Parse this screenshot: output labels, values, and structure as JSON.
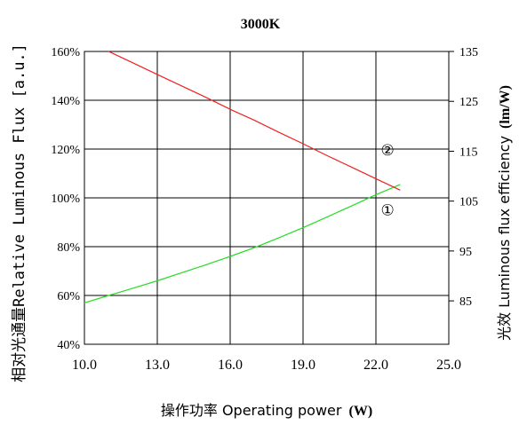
{
  "chart_data": {
    "type": "line",
    "title": "3000K",
    "xlabel": {
      "prefix": "操作功率 Operating power",
      "unit": "(W)"
    },
    "ylabel_left": "相对光通量Relative Luminous Flux [a.u.]",
    "ylabel_right": {
      "prefix": "光效 Luminous flux efficiency",
      "unit": "(lm/W)"
    },
    "x_ticks": [
      "10.0",
      "13.0",
      "16.0",
      "19.0",
      "22.0",
      "25.0"
    ],
    "xlim": [
      10.0,
      25.0
    ],
    "y_left_ticks": [
      "40%",
      "60%",
      "80%",
      "100%",
      "120%",
      "140%",
      "160%"
    ],
    "ylim_left": [
      40,
      160
    ],
    "y_right_ticks": [
      "85",
      "95",
      "105",
      "115",
      "125",
      "135"
    ],
    "ylim_right": [
      76.3,
      135
    ],
    "grid": true,
    "series": [
      {
        "name": "①",
        "axis": "left",
        "color": "#22dd22",
        "x": [
          10.0,
          11.0,
          12.0,
          13.0,
          14.0,
          15.0,
          16.0,
          17.0,
          18.0,
          19.0,
          20.0,
          21.0,
          22.0,
          23.0
        ],
        "values": [
          57,
          60,
          63,
          66,
          69.3,
          72.6,
          76,
          79.6,
          83.6,
          87.8,
          92.2,
          96.7,
          101.3,
          105.5
        ]
      },
      {
        "name": "②",
        "axis": "right",
        "color": "#ee2222",
        "x": [
          11.0,
          12.0,
          13.0,
          14.0,
          15.0,
          16.0,
          17.0,
          18.0,
          19.0,
          20.0,
          21.0,
          22.0,
          23.0
        ],
        "values": [
          135,
          132.7,
          130.4,
          128.1,
          125.8,
          123.4,
          121.2,
          118.8,
          116.5,
          114.1,
          111.8,
          109.5,
          107.2
        ]
      }
    ],
    "annotations": [
      {
        "text": "②",
        "series": "②",
        "x": 22.2,
        "y": 117.5
      },
      {
        "text": "①",
        "series": "①",
        "x": 22.2,
        "y": 93.0
      }
    ]
  }
}
